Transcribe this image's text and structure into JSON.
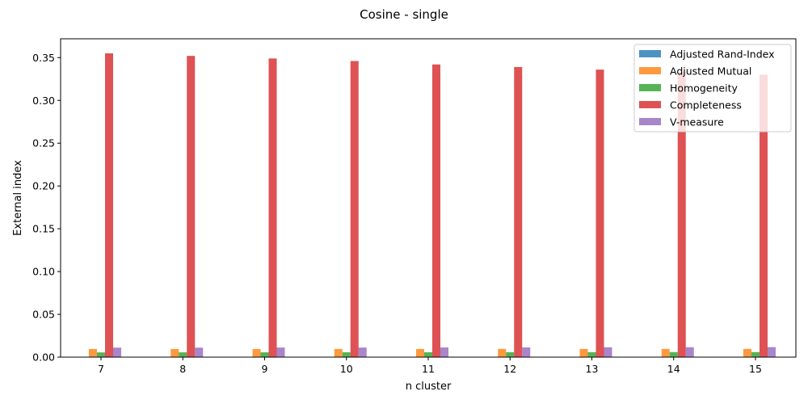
{
  "chart_data": {
    "type": "bar",
    "title": "Cosine - single",
    "xlabel": "n cluster",
    "ylabel": "External index",
    "categories": [
      "7",
      "8",
      "9",
      "10",
      "11",
      "12",
      "13",
      "14",
      "15"
    ],
    "ylim": [
      0,
      0.372
    ],
    "yticks": [
      "0.00",
      "0.05",
      "0.10",
      "0.15",
      "0.20",
      "0.25",
      "0.30",
      "0.35"
    ],
    "legend_position": "upper right",
    "grid": false,
    "series": [
      {
        "name": "Adjusted Rand-Index",
        "color": "#1f77b4",
        "values": [
          0.0001,
          0.0001,
          0.0001,
          0.0001,
          0.0001,
          0.0001,
          0.0001,
          0.0001,
          0.0001
        ]
      },
      {
        "name": "Adjusted Mutual",
        "color": "#ff7f0e",
        "values": [
          0.0095,
          0.0095,
          0.0095,
          0.0095,
          0.0095,
          0.0096,
          0.0096,
          0.0096,
          0.0096
        ]
      },
      {
        "name": "Homogeneity",
        "color": "#2ca02c",
        "values": [
          0.0055,
          0.0056,
          0.0056,
          0.0057,
          0.0057,
          0.0058,
          0.0058,
          0.0059,
          0.0059
        ]
      },
      {
        "name": "Completeness",
        "color": "#d62728",
        "values": [
          0.355,
          0.352,
          0.349,
          0.346,
          0.342,
          0.339,
          0.336,
          0.333,
          0.33
        ]
      },
      {
        "name": "V-measure",
        "color": "#9467bd",
        "values": [
          0.0111,
          0.0111,
          0.0112,
          0.0112,
          0.0113,
          0.0114,
          0.0115,
          0.0116,
          0.0117
        ]
      }
    ]
  }
}
